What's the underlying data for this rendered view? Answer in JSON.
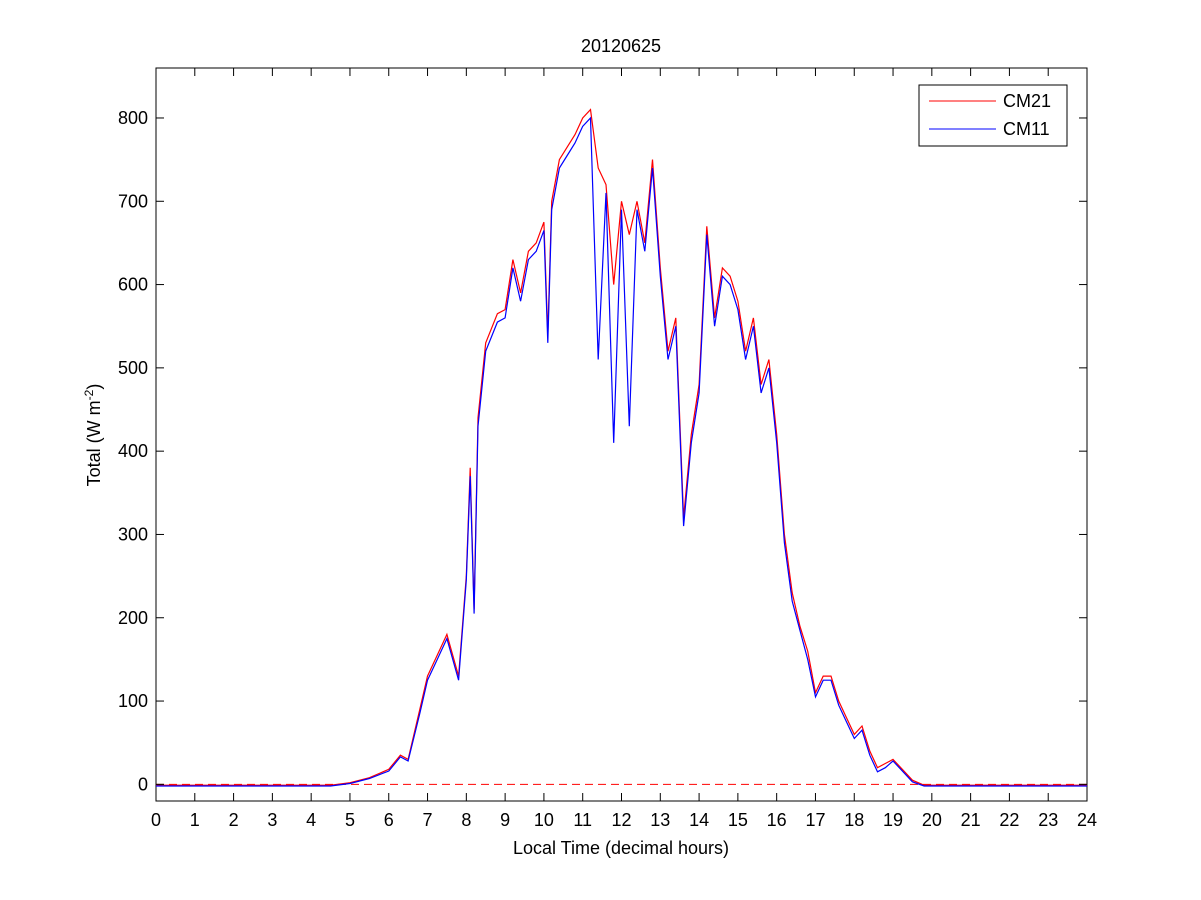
{
  "chart_data": {
    "type": "line",
    "title": "20120625",
    "xlabel": "Local Time (decimal hours)",
    "ylabel": "Total (W m-2)",
    "ylabel_parts": {
      "main": "Total (W m",
      "sup": "-2",
      "close": ")"
    },
    "xlim": [
      0,
      24
    ],
    "ylim": [
      -20,
      860
    ],
    "xticks": [
      0,
      1,
      2,
      3,
      4,
      5,
      6,
      7,
      8,
      9,
      10,
      11,
      12,
      13,
      14,
      15,
      16,
      17,
      18,
      19,
      20,
      21,
      22,
      23,
      24
    ],
    "yticks": [
      0,
      100,
      200,
      300,
      400,
      500,
      600,
      700,
      800
    ],
    "grid": false,
    "legend_position": "top-right",
    "series": [
      {
        "name": "CM21",
        "color": "#ff0000",
        "x": [
          0,
          4.5,
          5,
          5.5,
          6,
          6.3,
          6.5,
          6.8,
          7,
          7.2,
          7.5,
          7.8,
          8,
          8.1,
          8.2,
          8.3,
          8.5,
          8.8,
          9,
          9.2,
          9.4,
          9.6,
          9.8,
          10,
          10.1,
          10.2,
          10.4,
          10.6,
          10.8,
          11,
          11.2,
          11.4,
          11.6,
          11.8,
          12,
          12.2,
          12.4,
          12.6,
          12.8,
          13,
          13.2,
          13.4,
          13.6,
          13.8,
          14,
          14.2,
          14.4,
          14.6,
          14.8,
          15,
          15.2,
          15.4,
          15.6,
          15.8,
          16,
          16.2,
          16.4,
          16.6,
          16.8,
          17,
          17.2,
          17.4,
          17.6,
          17.8,
          18,
          18.2,
          18.4,
          18.6,
          18.8,
          19,
          19.2,
          19.5,
          19.8,
          20,
          24
        ],
        "y": [
          -1,
          -1,
          2,
          8,
          18,
          35,
          30,
          90,
          130,
          150,
          180,
          130,
          250,
          380,
          210,
          440,
          530,
          565,
          570,
          630,
          590,
          640,
          650,
          675,
          540,
          700,
          750,
          765,
          780,
          800,
          810,
          740,
          720,
          600,
          700,
          660,
          700,
          650,
          750,
          620,
          520,
          560,
          320,
          420,
          480,
          670,
          560,
          620,
          610,
          580,
          520,
          560,
          480,
          510,
          420,
          300,
          230,
          190,
          160,
          110,
          130,
          130,
          100,
          80,
          60,
          70,
          40,
          20,
          25,
          30,
          20,
          5,
          -1,
          -1,
          -1
        ]
      },
      {
        "name": "CM11",
        "color": "#0000ff",
        "x": [
          0,
          4.5,
          5,
          5.5,
          6,
          6.3,
          6.5,
          6.8,
          7,
          7.2,
          7.5,
          7.8,
          8,
          8.1,
          8.2,
          8.3,
          8.5,
          8.8,
          9,
          9.2,
          9.4,
          9.6,
          9.8,
          10,
          10.1,
          10.2,
          10.4,
          10.6,
          10.8,
          11,
          11.2,
          11.4,
          11.6,
          11.8,
          12,
          12.2,
          12.4,
          12.6,
          12.8,
          13,
          13.2,
          13.4,
          13.6,
          13.8,
          14,
          14.2,
          14.4,
          14.6,
          14.8,
          15,
          15.2,
          15.4,
          15.6,
          15.8,
          16,
          16.2,
          16.4,
          16.6,
          16.8,
          17,
          17.2,
          17.4,
          17.6,
          17.8,
          18,
          18.2,
          18.4,
          18.6,
          18.8,
          19,
          19.2,
          19.5,
          19.8,
          20,
          24
        ],
        "y": [
          -2,
          -2,
          1,
          7,
          16,
          33,
          28,
          85,
          125,
          145,
          175,
          125,
          245,
          370,
          205,
          430,
          520,
          555,
          560,
          620,
          580,
          630,
          640,
          665,
          530,
          690,
          740,
          755,
          770,
          790,
          800,
          510,
          710,
          410,
          690,
          430,
          690,
          640,
          740,
          610,
          510,
          550,
          310,
          410,
          470,
          660,
          550,
          610,
          600,
          570,
          510,
          550,
          470,
          500,
          410,
          290,
          220,
          185,
          150,
          105,
          125,
          125,
          95,
          75,
          55,
          65,
          35,
          15,
          20,
          28,
          18,
          3,
          -2,
          -2,
          -2
        ]
      }
    ]
  }
}
